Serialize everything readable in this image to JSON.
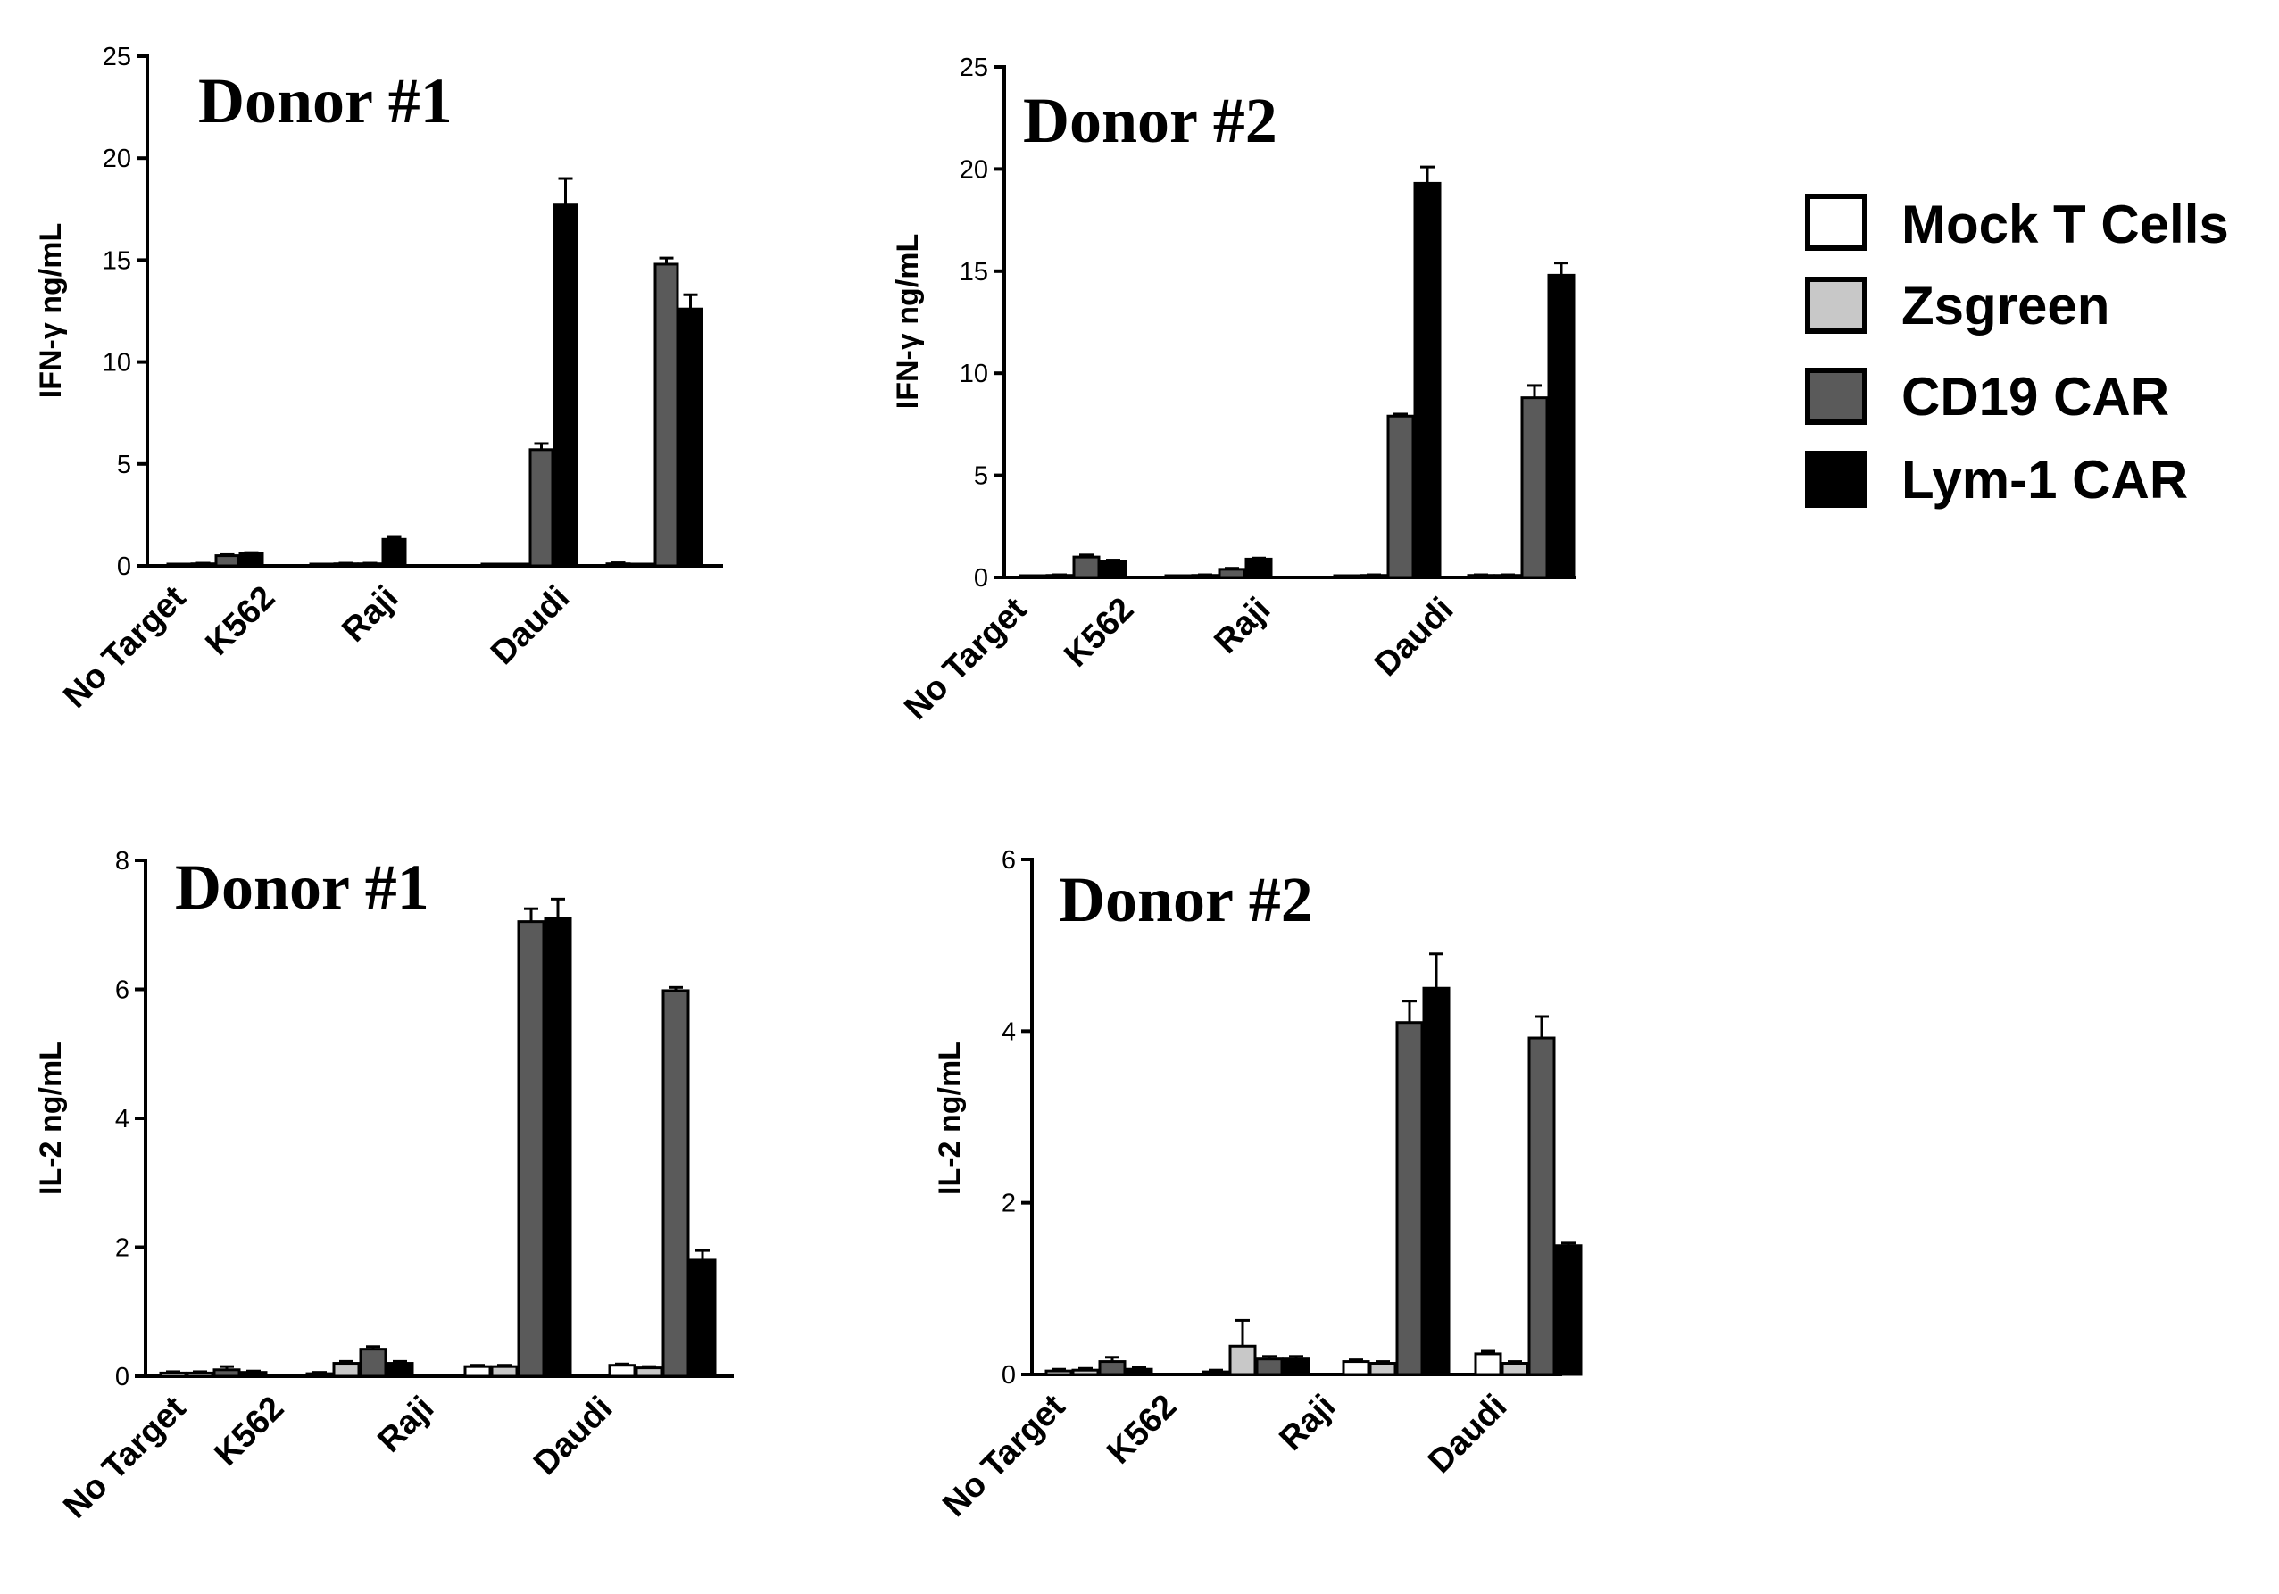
{
  "legend": [
    {
      "name": "Mock T Cells",
      "color": "#ffffff"
    },
    {
      "name": "Zsgreen",
      "color": "#c8c8c8"
    },
    {
      "name": "CD19 CAR",
      "color": "#5a5a5a"
    },
    {
      "name": "Lym-1 CAR",
      "color": "#000000"
    }
  ],
  "chart_data": [
    {
      "type": "bar",
      "title": "Donor #1",
      "ylabel": "IFN-γ ng/mL",
      "ylim": [
        0,
        25
      ],
      "yticks": [
        "0",
        "5",
        "10",
        "15",
        "20",
        "25"
      ],
      "categories": [
        "No Target",
        "K562",
        "Raji",
        "Daudi"
      ],
      "series": [
        {
          "name": "Mock T Cells",
          "values": [
            0.05,
            0.05,
            0.05,
            0.1
          ],
          "errors": [
            0.03,
            0.03,
            0.03,
            0.05
          ]
        },
        {
          "name": "Zsgreen",
          "values": [
            0.1,
            0.1,
            0.05,
            0.05
          ],
          "errors": [
            0.03,
            0.03,
            0.03,
            0.03
          ]
        },
        {
          "name": "CD19 CAR",
          "values": [
            0.5,
            0.1,
            5.7,
            14.8
          ],
          "errors": [
            0.05,
            0.03,
            0.3,
            0.3
          ]
        },
        {
          "name": "Lym-1 CAR",
          "values": [
            0.6,
            1.3,
            17.7,
            12.6
          ],
          "errors": [
            0.05,
            0.1,
            1.3,
            0.7
          ]
        }
      ]
    },
    {
      "type": "bar",
      "title": "Donor #2",
      "ylabel": "IFN-γ ng/mL",
      "ylim": [
        0,
        25
      ],
      "yticks": [
        "0",
        "5",
        "10",
        "15",
        "20",
        "25"
      ],
      "categories": [
        "No Target",
        "K562",
        "Raji",
        "Daudi"
      ],
      "series": [
        {
          "name": "Mock T Cells",
          "values": [
            0.05,
            0.05,
            0.05,
            0.1
          ],
          "errors": [
            0.03,
            0.03,
            0.03,
            0.03
          ]
        },
        {
          "name": "Zsgreen",
          "values": [
            0.1,
            0.1,
            0.1,
            0.1
          ],
          "errors": [
            0.03,
            0.03,
            0.03,
            0.03
          ]
        },
        {
          "name": "CD19 CAR",
          "values": [
            1.0,
            0.4,
            7.9,
            8.8
          ],
          "errors": [
            0.1,
            0.05,
            0.1,
            0.6
          ]
        },
        {
          "name": "Lym-1 CAR",
          "values": [
            0.8,
            0.9,
            19.3,
            14.8
          ],
          "errors": [
            0.05,
            0.05,
            0.8,
            0.6
          ]
        }
      ]
    },
    {
      "type": "bar",
      "title": "Donor #1",
      "ylabel": "IL-2 ng/mL",
      "ylim": [
        0,
        8
      ],
      "yticks": [
        "0",
        "2",
        "4",
        "6",
        "8"
      ],
      "categories": [
        "No Target",
        "K562",
        "Raji",
        "Daudi"
      ],
      "series": [
        {
          "name": "Mock T Cells",
          "values": [
            0.05,
            0.04,
            0.15,
            0.17
          ],
          "errors": [
            0.02,
            0.02,
            0.02,
            0.02
          ]
        },
        {
          "name": "Zsgreen",
          "values": [
            0.05,
            0.2,
            0.15,
            0.13
          ],
          "errors": [
            0.02,
            0.03,
            0.02,
            0.02
          ]
        },
        {
          "name": "CD19 CAR",
          "values": [
            0.1,
            0.42,
            7.05,
            5.98
          ],
          "errors": [
            0.05,
            0.04,
            0.2,
            0.05
          ]
        },
        {
          "name": "Lym-1 CAR",
          "values": [
            0.06,
            0.2,
            7.1,
            1.8
          ],
          "errors": [
            0.02,
            0.03,
            0.3,
            0.15
          ]
        }
      ]
    },
    {
      "type": "bar",
      "title": "Donor #2",
      "ylabel": "IL-2 ng/mL",
      "ylim": [
        0,
        6
      ],
      "yticks": [
        "0",
        "2",
        "4",
        "6"
      ],
      "categories": [
        "No Target",
        "K562",
        "Raji",
        "Daudi"
      ],
      "series": [
        {
          "name": "Mock T Cells",
          "values": [
            0.04,
            0.03,
            0.15,
            0.24
          ],
          "errors": [
            0.02,
            0.02,
            0.02,
            0.03
          ]
        },
        {
          "name": "Zsgreen",
          "values": [
            0.05,
            0.33,
            0.13,
            0.13
          ],
          "errors": [
            0.02,
            0.3,
            0.02,
            0.02
          ]
        },
        {
          "name": "CD19 CAR",
          "values": [
            0.15,
            0.18,
            4.1,
            3.92
          ],
          "errors": [
            0.05,
            0.03,
            0.25,
            0.25
          ]
        },
        {
          "name": "Lym-1 CAR",
          "values": [
            0.06,
            0.18,
            4.5,
            1.5
          ],
          "errors": [
            0.02,
            0.03,
            0.4,
            0.03
          ]
        }
      ]
    }
  ]
}
